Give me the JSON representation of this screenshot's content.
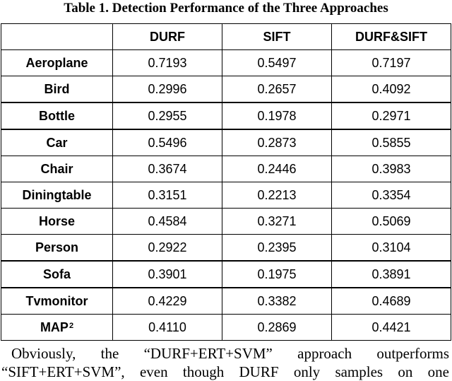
{
  "caption": "Table 1. Detection Performance of the Three Approaches",
  "table": {
    "header": [
      "",
      "DURF",
      "SIFT",
      "DURF&SIFT"
    ],
    "rows": [
      {
        "label": "Aeroplane",
        "durf": "0.7193",
        "sift": "0.5497",
        "both": "0.7197"
      },
      {
        "label": "Bird",
        "durf": "0.2996",
        "sift": "0.2657",
        "both": "0.4092"
      },
      {
        "label": "Bottle",
        "durf": "0.2955",
        "sift": "0.1978",
        "both": "0.2971"
      },
      {
        "label": "Car",
        "durf": "0.5496",
        "sift": "0.2873",
        "both": "0.5855"
      },
      {
        "label": "Chair",
        "durf": "0.3674",
        "sift": "0.2446",
        "both": "0.3983"
      },
      {
        "label": "Diningtable",
        "durf": "0.3151",
        "sift": "0.2213",
        "both": "0.3354"
      },
      {
        "label": "Horse",
        "durf": "0.4584",
        "sift": "0.3271",
        "both": "0.5069"
      },
      {
        "label": "Person",
        "durf": "0.2922",
        "sift": "0.2395",
        "both": "0.3104"
      },
      {
        "label": "Sofa",
        "durf": "0.3901",
        "sift": "0.1975",
        "both": "0.3891"
      },
      {
        "label": "Tvmonitor",
        "durf": "0.4229",
        "sift": "0.3382",
        "both": "0.4689"
      },
      {
        "label": "MAP",
        "footnote": "2",
        "durf": "0.4110",
        "sift": "0.2869",
        "both": "0.4421"
      }
    ]
  },
  "paragraph": {
    "line1": "Obviously, the “DURF+ERT+SVM” approach outperforms",
    "line2": "“SIFT+ERT+SVM”, even though DURF only samples on one"
  }
}
